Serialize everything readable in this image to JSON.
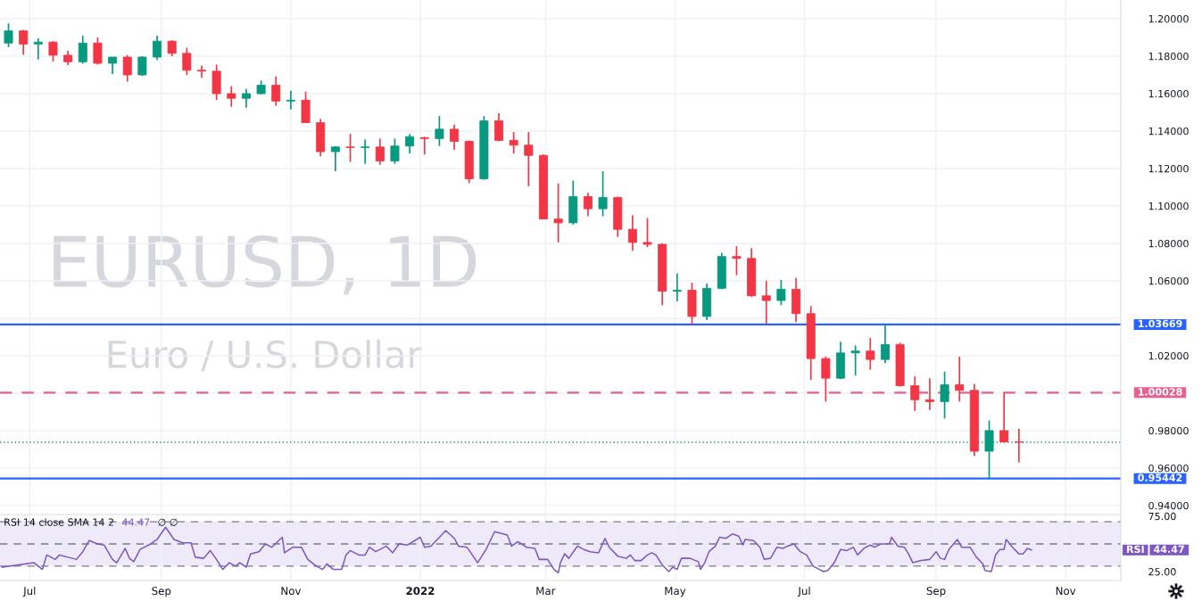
{
  "chart_data": [
    {
      "type": "candlestick",
      "title": "EURUSD, 1D",
      "subtitle": "Euro / U.S. Dollar",
      "x": [
        "2021-06-21",
        "2021-06-28",
        "2021-07-05",
        "2021-07-12",
        "2021-07-19",
        "2021-07-26",
        "2021-08-02",
        "2021-08-09",
        "2021-08-16",
        "2021-08-23",
        "2021-08-30",
        "2021-09-06",
        "2021-09-13",
        "2021-09-20",
        "2021-09-27",
        "2021-10-04",
        "2021-10-11",
        "2021-10-18",
        "2021-10-25",
        "2021-11-01",
        "2021-11-08",
        "2021-11-15",
        "2021-11-22",
        "2021-11-29",
        "2021-12-06",
        "2021-12-13",
        "2021-12-20",
        "2021-12-27",
        "2022-01-03",
        "2022-01-10",
        "2022-01-17",
        "2022-01-24",
        "2022-01-31",
        "2022-02-07",
        "2022-02-14",
        "2022-02-21",
        "2022-02-28",
        "2022-03-07",
        "2022-03-14",
        "2022-03-21",
        "2022-03-28",
        "2022-04-04",
        "2022-04-11",
        "2022-04-18",
        "2022-04-25",
        "2022-05-02",
        "2022-05-09",
        "2022-05-16",
        "2022-05-23",
        "2022-05-30",
        "2022-06-06",
        "2022-06-13",
        "2022-06-20",
        "2022-06-27",
        "2022-07-04",
        "2022-07-11",
        "2022-07-18",
        "2022-07-25",
        "2022-08-01",
        "2022-08-08",
        "2022-08-15",
        "2022-08-22",
        "2022-08-29",
        "2022-09-05",
        "2022-09-12",
        "2022-09-19",
        "2022-09-26",
        "2022-10-03",
        "2022-10-10"
      ],
      "ohlc": [
        [
          1.187,
          1.1975,
          1.1848,
          1.1935
        ],
        [
          1.1935,
          1.194,
          1.1807,
          1.1865
        ],
        [
          1.1865,
          1.1895,
          1.1782,
          1.1875
        ],
        [
          1.1875,
          1.188,
          1.1772,
          1.1805
        ],
        [
          1.1805,
          1.183,
          1.1752,
          1.177
        ],
        [
          1.177,
          1.1909,
          1.176,
          1.187
        ],
        [
          1.187,
          1.19,
          1.1755,
          1.1762
        ],
        [
          1.1762,
          1.1795,
          1.1705,
          1.1795
        ],
        [
          1.1795,
          1.1805,
          1.1664,
          1.17
        ],
        [
          1.17,
          1.18,
          1.1695,
          1.1795
        ],
        [
          1.1795,
          1.1909,
          1.178,
          1.188
        ],
        [
          1.188,
          1.1885,
          1.18,
          1.1815
        ],
        [
          1.1815,
          1.1845,
          1.17,
          1.1725
        ],
        [
          1.1725,
          1.175,
          1.1685,
          1.172
        ],
        [
          1.172,
          1.1755,
          1.1565,
          1.16
        ],
        [
          1.16,
          1.164,
          1.153,
          1.1575
        ],
        [
          1.1575,
          1.1625,
          1.1525,
          1.16
        ],
        [
          1.16,
          1.167,
          1.1595,
          1.1645
        ],
        [
          1.1645,
          1.1692,
          1.1535,
          1.156
        ],
        [
          1.156,
          1.1615,
          1.1515,
          1.1565
        ],
        [
          1.1565,
          1.161,
          1.1445,
          1.1445
        ],
        [
          1.1445,
          1.1465,
          1.1265,
          1.129
        ],
        [
          1.129,
          1.132,
          1.1186,
          1.1315
        ],
        [
          1.1315,
          1.1385,
          1.1235,
          1.1312
        ],
        [
          1.1312,
          1.1355,
          1.1225,
          1.1315
        ],
        [
          1.1315,
          1.136,
          1.122,
          1.124
        ],
        [
          1.124,
          1.136,
          1.1225,
          1.132
        ],
        [
          1.132,
          1.1385,
          1.128,
          1.137
        ],
        [
          1.1365,
          1.137,
          1.1275,
          1.136
        ],
        [
          1.136,
          1.148,
          1.132,
          1.141
        ],
        [
          1.141,
          1.1435,
          1.13,
          1.1345
        ],
        [
          1.1345,
          1.135,
          1.1122,
          1.1145
        ],
        [
          1.1145,
          1.148,
          1.114,
          1.1455
        ],
        [
          1.1455,
          1.1495,
          1.1345,
          1.135
        ],
        [
          1.135,
          1.1395,
          1.128,
          1.1325
        ],
        [
          1.1325,
          1.1395,
          1.1105,
          1.127
        ],
        [
          1.127,
          1.1275,
          1.093,
          1.093
        ],
        [
          1.093,
          1.112,
          1.0805,
          1.091
        ],
        [
          1.091,
          1.1135,
          1.09,
          1.105
        ],
        [
          1.105,
          1.107,
          1.0945,
          1.0985
        ],
        [
          1.0985,
          1.1185,
          1.0945,
          1.1045
        ],
        [
          1.1045,
          1.105,
          1.0835,
          1.0875
        ],
        [
          1.0875,
          1.095,
          1.076,
          1.0805
        ],
        [
          1.0805,
          1.0935,
          1.078,
          1.0795
        ],
        [
          1.0795,
          1.08,
          1.047,
          1.0545
        ],
        [
          1.0545,
          1.064,
          1.049,
          1.055
        ],
        [
          1.055,
          1.059,
          1.0367,
          1.041
        ],
        [
          1.041,
          1.0585,
          1.039,
          1.056
        ],
        [
          1.056,
          1.075,
          1.0555,
          1.073
        ],
        [
          1.073,
          1.0785,
          1.063,
          1.072
        ],
        [
          1.072,
          1.0775,
          1.0515,
          1.052
        ],
        [
          1.052,
          1.06,
          1.037,
          1.0495
        ],
        [
          1.0495,
          1.0605,
          1.047,
          1.0555
        ],
        [
          1.0555,
          1.0615,
          1.038,
          1.0425
        ],
        [
          1.0425,
          1.0465,
          1.007,
          1.0185
        ],
        [
          1.0185,
          1.0195,
          0.9955,
          1.008
        ],
        [
          1.008,
          1.0275,
          1.0075,
          1.0215
        ],
        [
          1.0215,
          1.0255,
          1.0095,
          1.0225
        ],
        [
          1.0225,
          1.0295,
          1.0125,
          1.018
        ],
        [
          1.018,
          1.0367,
          1.016,
          1.026
        ],
        [
          1.026,
          1.027,
          1.0035,
          1.004
        ],
        [
          1.004,
          1.009,
          0.9905,
          0.9965
        ],
        [
          0.9965,
          1.008,
          0.991,
          0.9955
        ],
        [
          0.9955,
          1.0115,
          0.9865,
          1.0045
        ],
        [
          1.0045,
          1.0195,
          0.9955,
          1.0015
        ],
        [
          1.0015,
          1.005,
          0.9665,
          0.969
        ],
        [
          0.969,
          0.9855,
          0.9544,
          0.98
        ],
        [
          0.98,
          1.0003,
          0.9735,
          0.974
        ],
        [
          0.974,
          0.981,
          0.963,
          0.9738
        ]
      ],
      "colors": [
        "#089981",
        "#f23645",
        "#089981",
        "#f23645",
        "#f23645",
        "#089981",
        "#f23645",
        "#089981",
        "#f23645",
        "#089981",
        "#089981",
        "#f23645",
        "#f23645",
        "#f23645",
        "#f23645",
        "#f23645",
        "#089981",
        "#089981",
        "#f23645",
        "#089981",
        "#f23645",
        "#f23645",
        "#089981",
        "#f23645",
        "#089981",
        "#f23645",
        "#089981",
        "#089981",
        "#f23645",
        "#089981",
        "#f23645",
        "#f23645",
        "#089981",
        "#f23645",
        "#f23645",
        "#f23645",
        "#f23645",
        "#f23645",
        "#089981",
        "#f23645",
        "#089981",
        "#f23645",
        "#f23645",
        "#f23645",
        "#f23645",
        "#089981",
        "#f23645",
        "#089981",
        "#089981",
        "#f23645",
        "#f23645",
        "#f23645",
        "#089981",
        "#f23645",
        "#f23645",
        "#f23645",
        "#089981",
        "#089981",
        "#f23645",
        "#089981",
        "#f23645",
        "#f23645",
        "#f23645",
        "#089981",
        "#f23645",
        "#f23645",
        "#089981",
        "#f23645",
        "#f23645"
      ],
      "xlim": [
        "2021-06-17",
        "2022-11-27"
      ],
      "xticks": [
        {
          "value": "2021-07-01",
          "label": null
        },
        {
          "value": "2021-09-01",
          "label": null
        },
        {
          "value": "2021-11-01",
          "label": null
        },
        {
          "value": "2022-01-01",
          "label": null
        },
        {
          "value": "2022-03-01",
          "label": null
        },
        {
          "value": "2022-05-01",
          "label": null
        },
        {
          "value": "2022-07-01",
          "label": null
        },
        {
          "value": "2022-09-01",
          "label": null
        },
        {
          "value": "2022-11-01",
          "label": null
        }
      ],
      "ylim": [
        0.9352,
        1.21
      ],
      "yticks": [
        {
          "value": 0.94,
          "label": "0.94000"
        },
        {
          "value": 0.96,
          "label": "0.96000"
        },
        {
          "value": 0.98,
          "label": "0.98000"
        },
        {
          "value": 1.0,
          "label": null
        },
        {
          "value": 1.02,
          "label": "1.02000"
        },
        {
          "value": 1.04,
          "label": null
        },
        {
          "value": 1.06,
          "label": "1.06000"
        },
        {
          "value": 1.08,
          "label": "1.08000"
        },
        {
          "value": 1.1,
          "label": "1.10000"
        },
        {
          "value": 1.12,
          "label": "1.12000"
        },
        {
          "value": 1.14,
          "label": "1.14000"
        },
        {
          "value": 1.16,
          "label": "1.16000"
        },
        {
          "value": 1.18,
          "label": "1.18000"
        },
        {
          "value": 1.2,
          "label": "1.20000"
        }
      ],
      "ref_lines": [
        {
          "axis": "y",
          "value": 1.03669,
          "label": "1.03669",
          "color": "#2962ff",
          "line_style": "solid"
        },
        {
          "axis": "y",
          "value": 1.00028,
          "label": "1.00028",
          "color": "#e5618f",
          "line_style": "dashed"
        },
        {
          "axis": "y",
          "value": 0.95442,
          "label": "0.95442",
          "color": "#2962ff",
          "line_style": "solid"
        },
        {
          "axis": "y",
          "value": 0.9738,
          "color": "#089981",
          "line_style": "dotted"
        }
      ],
      "grid": true,
      "tick_labels": "y"
    },
    {
      "type": "line",
      "series": [
        {
          "name": "RSI 14 close SMA 14 2",
          "color": "#7e57c2",
          "x": [
            "2021-06-18",
            "2021-07-03",
            "2021-07-07",
            "2021-07-09",
            "2021-07-13",
            "2021-07-15",
            "2021-07-19",
            "2021-07-23",
            "2021-07-26",
            "2021-07-29",
            "2021-08-02",
            "2021-08-05",
            "2021-08-09",
            "2021-08-11",
            "2021-08-15",
            "2021-08-17",
            "2021-08-19",
            "2021-08-22",
            "2021-08-27",
            "2021-08-30",
            "2021-09-03",
            "2021-09-07",
            "2021-09-11",
            "2021-09-15",
            "2021-09-17",
            "2021-09-21",
            "2021-09-24",
            "2021-09-27",
            "2021-09-30",
            "2021-10-03",
            "2021-10-06",
            "2021-10-08",
            "2021-10-11",
            "2021-10-13",
            "2021-10-17",
            "2021-10-20",
            "2021-10-23",
            "2021-10-28",
            "2021-10-29",
            "2021-11-02",
            "2021-11-06",
            "2021-11-09",
            "2021-11-13",
            "2021-11-16",
            "2021-11-18",
            "2021-11-21",
            "2021-11-25",
            "2021-11-27",
            "2021-11-29",
            "2021-12-03",
            "2021-12-06",
            "2021-12-08",
            "2021-12-11",
            "2021-12-16",
            "2021-12-19",
            "2021-12-22",
            "2021-12-26",
            "2022-01-01",
            "2022-01-03",
            "2022-01-06",
            "2022-01-09",
            "2022-01-13",
            "2022-01-17",
            "2022-01-19",
            "2022-01-23",
            "2022-01-28",
            "2022-02-01",
            "2022-02-05",
            "2022-02-11",
            "2022-02-13",
            "2022-02-16",
            "2022-02-20",
            "2022-02-24",
            "2022-02-26",
            "2022-03-02",
            "2022-03-05",
            "2022-03-07",
            "2022-03-08",
            "2022-03-10",
            "2022-03-12",
            "2022-03-16",
            "2022-03-19",
            "2022-03-22",
            "2022-03-26",
            "2022-03-29",
            "2022-03-31",
            "2022-04-04",
            "2022-04-08",
            "2022-04-10",
            "2022-04-12",
            "2022-04-15",
            "2022-04-18",
            "2022-04-20",
            "2022-04-22",
            "2022-04-25",
            "2022-04-28",
            "2022-04-30",
            "2022-05-02",
            "2022-05-04",
            "2022-05-08",
            "2022-05-12",
            "2022-05-13",
            "2022-05-15",
            "2022-05-17",
            "2022-05-20",
            "2022-05-22",
            "2022-05-25",
            "2022-05-28",
            "2022-05-31",
            "2022-06-02",
            "2022-06-03",
            "2022-06-07",
            "2022-06-10",
            "2022-06-12",
            "2022-06-15",
            "2022-06-18",
            "2022-06-21",
            "2022-06-23",
            "2022-06-26",
            "2022-06-29",
            "2022-07-02",
            "2022-07-05",
            "2022-07-08",
            "2022-07-10",
            "2022-07-12",
            "2022-07-15",
            "2022-07-18",
            "2022-07-21",
            "2022-07-24",
            "2022-07-26",
            "2022-07-29",
            "2022-08-01",
            "2022-08-03",
            "2022-08-06",
            "2022-08-10",
            "2022-08-11",
            "2022-08-14",
            "2022-08-17",
            "2022-08-19",
            "2022-08-21",
            "2022-08-25",
            "2022-08-29",
            "2022-09-01",
            "2022-09-03",
            "2022-09-05",
            "2022-09-07",
            "2022-09-11",
            "2022-09-13",
            "2022-09-17",
            "2022-09-20",
            "2022-09-23",
            "2022-09-24",
            "2022-09-27",
            "2022-09-29",
            "2022-10-01",
            "2022-10-03",
            "2022-10-04",
            "2022-10-07",
            "2022-10-10",
            "2022-10-12",
            "2022-10-14",
            "2022-10-16"
          ],
          "values": [
            29,
            33,
            27,
            40,
            36,
            40,
            38,
            36,
            43,
            53,
            50,
            49,
            36,
            33,
            46,
            37,
            34,
            45,
            50,
            54,
            65,
            54,
            51,
            51,
            38,
            37,
            44,
            36,
            27,
            33,
            30,
            33,
            29,
            41,
            43,
            50,
            47,
            56,
            42,
            47,
            47,
            36,
            30,
            27,
            32,
            27,
            27,
            40,
            44,
            40,
            40,
            47,
            43,
            48,
            42,
            50,
            49,
            56,
            47,
            48,
            54,
            62,
            55,
            48,
            47,
            33,
            45,
            61,
            58,
            48,
            52,
            47,
            46,
            36,
            36,
            27,
            24,
            33,
            41,
            37,
            48,
            45,
            43,
            42,
            55,
            47,
            39,
            37,
            40,
            35,
            35,
            40,
            42,
            40,
            31,
            25,
            29,
            27,
            37,
            37,
            34,
            27,
            33,
            43,
            48,
            56,
            55,
            59,
            57,
            49,
            54,
            53,
            47,
            36,
            37,
            47,
            46,
            48,
            50,
            43,
            40,
            30,
            27,
            25,
            26,
            33,
            45,
            44,
            47,
            40,
            46,
            49,
            47,
            50,
            50,
            56,
            48,
            47,
            41,
            33,
            35,
            36,
            43,
            37,
            36,
            45,
            54,
            47,
            47,
            38,
            32,
            26,
            25,
            40,
            45,
            45,
            54,
            47,
            41,
            41,
            46,
            44.47
          ]
        }
      ],
      "xlim": [
        "2021-06-17",
        "2022-11-27"
      ],
      "xticks": [
        {
          "value": "2021-07-01",
          "label": "Jul"
        },
        {
          "value": "2021-09-01",
          "label": "Sep"
        },
        {
          "value": "2021-11-01",
          "label": "Nov"
        },
        {
          "value": "2022-01-01",
          "label": "2022"
        },
        {
          "value": "2022-03-01",
          "label": "Mar"
        },
        {
          "value": "2022-05-01",
          "label": "May"
        },
        {
          "value": "2022-07-01",
          "label": "Jul"
        },
        {
          "value": "2022-09-01",
          "label": "Sep"
        },
        {
          "value": "2022-11-01",
          "label": "Nov"
        }
      ],
      "ylim": [
        17,
        76.5
      ],
      "yticks": [
        {
          "value": 25,
          "label": "25.00"
        },
        {
          "value": 50,
          "label": null
        },
        {
          "value": 75,
          "label": "75.00"
        }
      ],
      "bands": [
        {
          "axis": "y",
          "from": 30,
          "to": 70,
          "color": "#efeafa"
        }
      ],
      "ref_lines": [
        {
          "axis": "y",
          "value": 70,
          "color": "#787b86",
          "line_style": "dashed"
        },
        {
          "axis": "y",
          "value": 50,
          "color": "#787b86",
          "line_style": "dashed"
        },
        {
          "axis": "y",
          "value": 30,
          "color": "#787b86",
          "line_style": "dashed"
        }
      ],
      "annotations": [
        "44.47",
        "∅ ∅",
        "RSI",
        "44.47"
      ],
      "grid": "x",
      "legend": "top left"
    }
  ]
}
